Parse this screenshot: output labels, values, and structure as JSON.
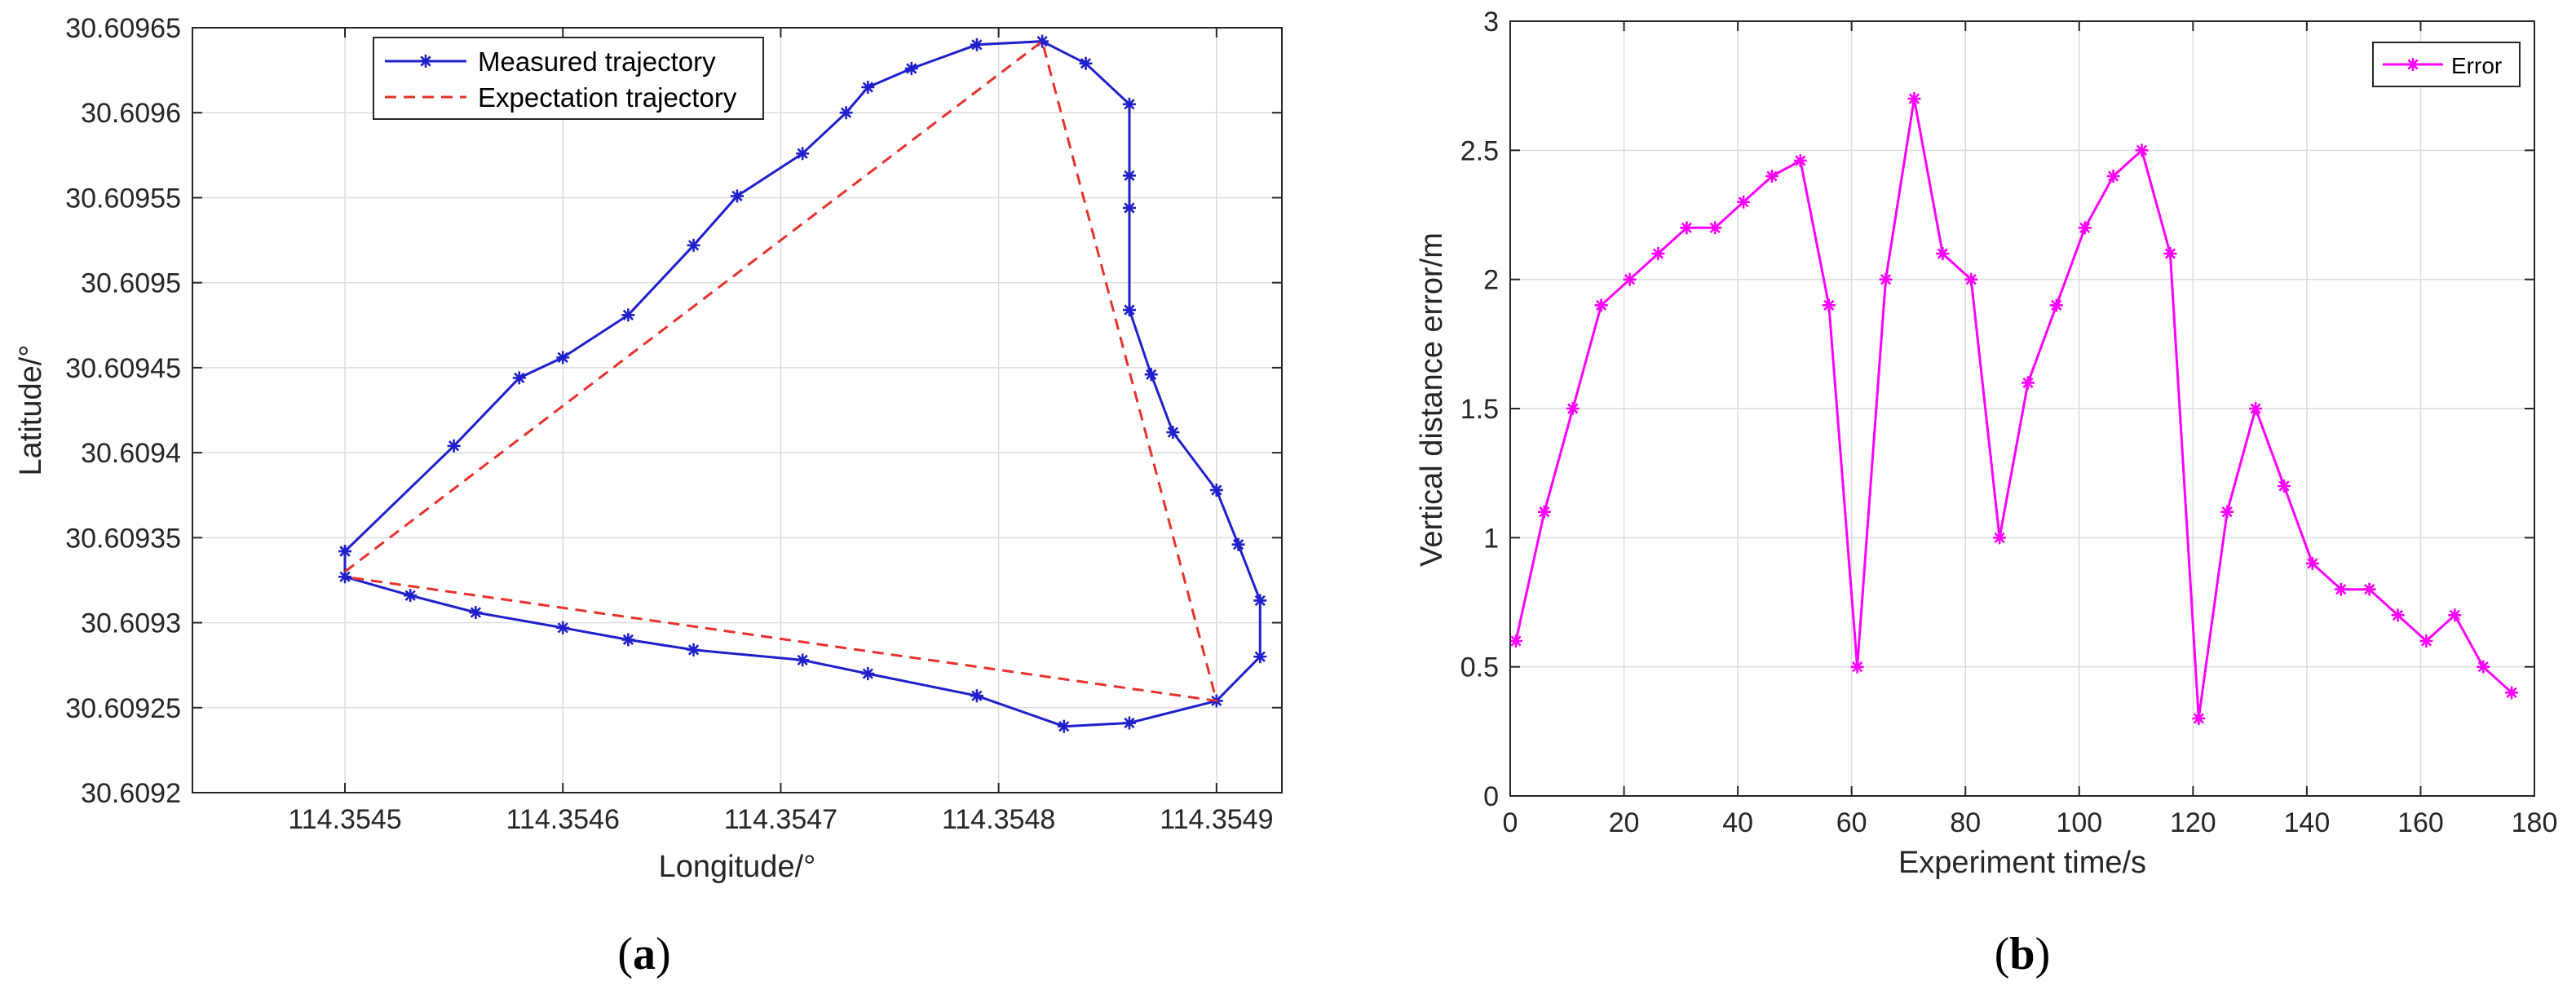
{
  "chart_data": [
    {
      "type": "line",
      "panel_label": "a",
      "xlabel": "Longitude/°",
      "ylabel": "Latitude/°",
      "xlim": [
        114.35443,
        114.35493
      ],
      "ylim": [
        30.6092,
        30.60965
      ],
      "xticks": [
        114.3545,
        114.3546,
        114.3547,
        114.3548,
        114.3549
      ],
      "xtick_labels": [
        "114.3545",
        "114.3546",
        "114.3547",
        "114.3548",
        "114.3549"
      ],
      "yticks": [
        30.6092,
        30.60925,
        30.6093,
        30.60935,
        30.6094,
        30.60945,
        30.6095,
        30.60955,
        30.6096,
        30.60965
      ],
      "ytick_labels": [
        "30.6092",
        "30.60925",
        "30.6093",
        "30.60935",
        "30.6094",
        "30.60945",
        "30.6095",
        "30.60955",
        "30.6096",
        "30.60965"
      ],
      "grid": true,
      "legend_position": "top",
      "colors": {
        "measured": "#1f1fcc",
        "expectation": "#e8312a"
      },
      "series": [
        {
          "name": "Measured trajectory",
          "style": "solid-star",
          "x": [
            114.3545,
            114.35455,
            114.35458,
            114.3546,
            114.35463,
            114.35466,
            114.35468,
            114.35471,
            114.35473,
            114.35474,
            114.35476,
            114.35479,
            114.35482,
            114.35484,
            114.35486,
            114.35486,
            114.35486,
            114.35486,
            114.35487,
            114.35488,
            114.3549,
            114.35491,
            114.35492,
            114.35492,
            114.3549,
            114.35486,
            114.35483,
            114.35479,
            114.35474,
            114.35471,
            114.35466,
            114.35463,
            114.3546,
            114.35456,
            114.35453,
            114.3545,
            114.3545
          ],
          "y": [
            30.609342,
            30.609404,
            30.609444,
            30.609456,
            30.609481,
            30.609522,
            30.609551,
            30.609576,
            30.6096,
            30.609615,
            30.609626,
            30.60964,
            30.609642,
            30.609629,
            30.609605,
            30.609563,
            30.609544,
            30.609484,
            30.609446,
            30.609412,
            30.609378,
            30.609346,
            30.609313,
            30.60928,
            30.609254,
            30.609241,
            30.609239,
            30.609257,
            30.60927,
            30.609278,
            30.609284,
            30.60929,
            30.609297,
            30.609306,
            30.609316,
            30.609327,
            30.609342
          ]
        },
        {
          "name": "Expectation trajectory",
          "style": "dashed",
          "x": [
            114.3545,
            114.35482,
            114.3549,
            114.3545
          ],
          "y": [
            30.60933,
            30.609642,
            30.609254,
            30.609327
          ]
        }
      ]
    },
    {
      "type": "line",
      "panel_label": "b",
      "xlabel": "Experiment time/s",
      "ylabel": "Vertical distance error/m",
      "xlim": [
        0,
        180
      ],
      "ylim": [
        0,
        3
      ],
      "xticks": [
        0,
        20,
        40,
        60,
        80,
        100,
        120,
        140,
        160,
        180
      ],
      "xtick_labels": [
        "0",
        "20",
        "40",
        "60",
        "80",
        "100",
        "120",
        "140",
        "160",
        "180"
      ],
      "yticks": [
        0,
        0.5,
        1,
        1.5,
        2,
        2.5,
        3
      ],
      "ytick_labels": [
        "0",
        "0.5",
        "1",
        "1.5",
        "2",
        "2.5",
        "3"
      ],
      "grid": true,
      "legend_position": "top-right",
      "colors": {
        "error": "#ff00ff"
      },
      "series": [
        {
          "name": "Error",
          "style": "solid-star",
          "x": [
            1,
            6,
            11,
            16,
            21,
            26,
            31,
            36,
            41,
            46,
            51,
            56,
            61,
            66,
            71,
            76,
            81,
            86,
            91,
            96,
            101,
            106,
            111,
            116,
            121,
            126,
            131,
            136,
            141,
            146,
            151,
            156,
            161,
            166,
            171,
            176
          ],
          "y": [
            0.6,
            1.1,
            1.5,
            1.9,
            2.0,
            2.1,
            2.2,
            2.2,
            2.3,
            2.4,
            2.46,
            1.9,
            0.5,
            2.0,
            2.7,
            2.1,
            2.0,
            1.0,
            1.6,
            1.9,
            2.2,
            2.4,
            2.5,
            2.1,
            0.3,
            1.1,
            1.5,
            1.2,
            0.9,
            0.8,
            0.8,
            0.7,
            0.6,
            0.7,
            0.5,
            0.4
          ]
        }
      ]
    }
  ]
}
